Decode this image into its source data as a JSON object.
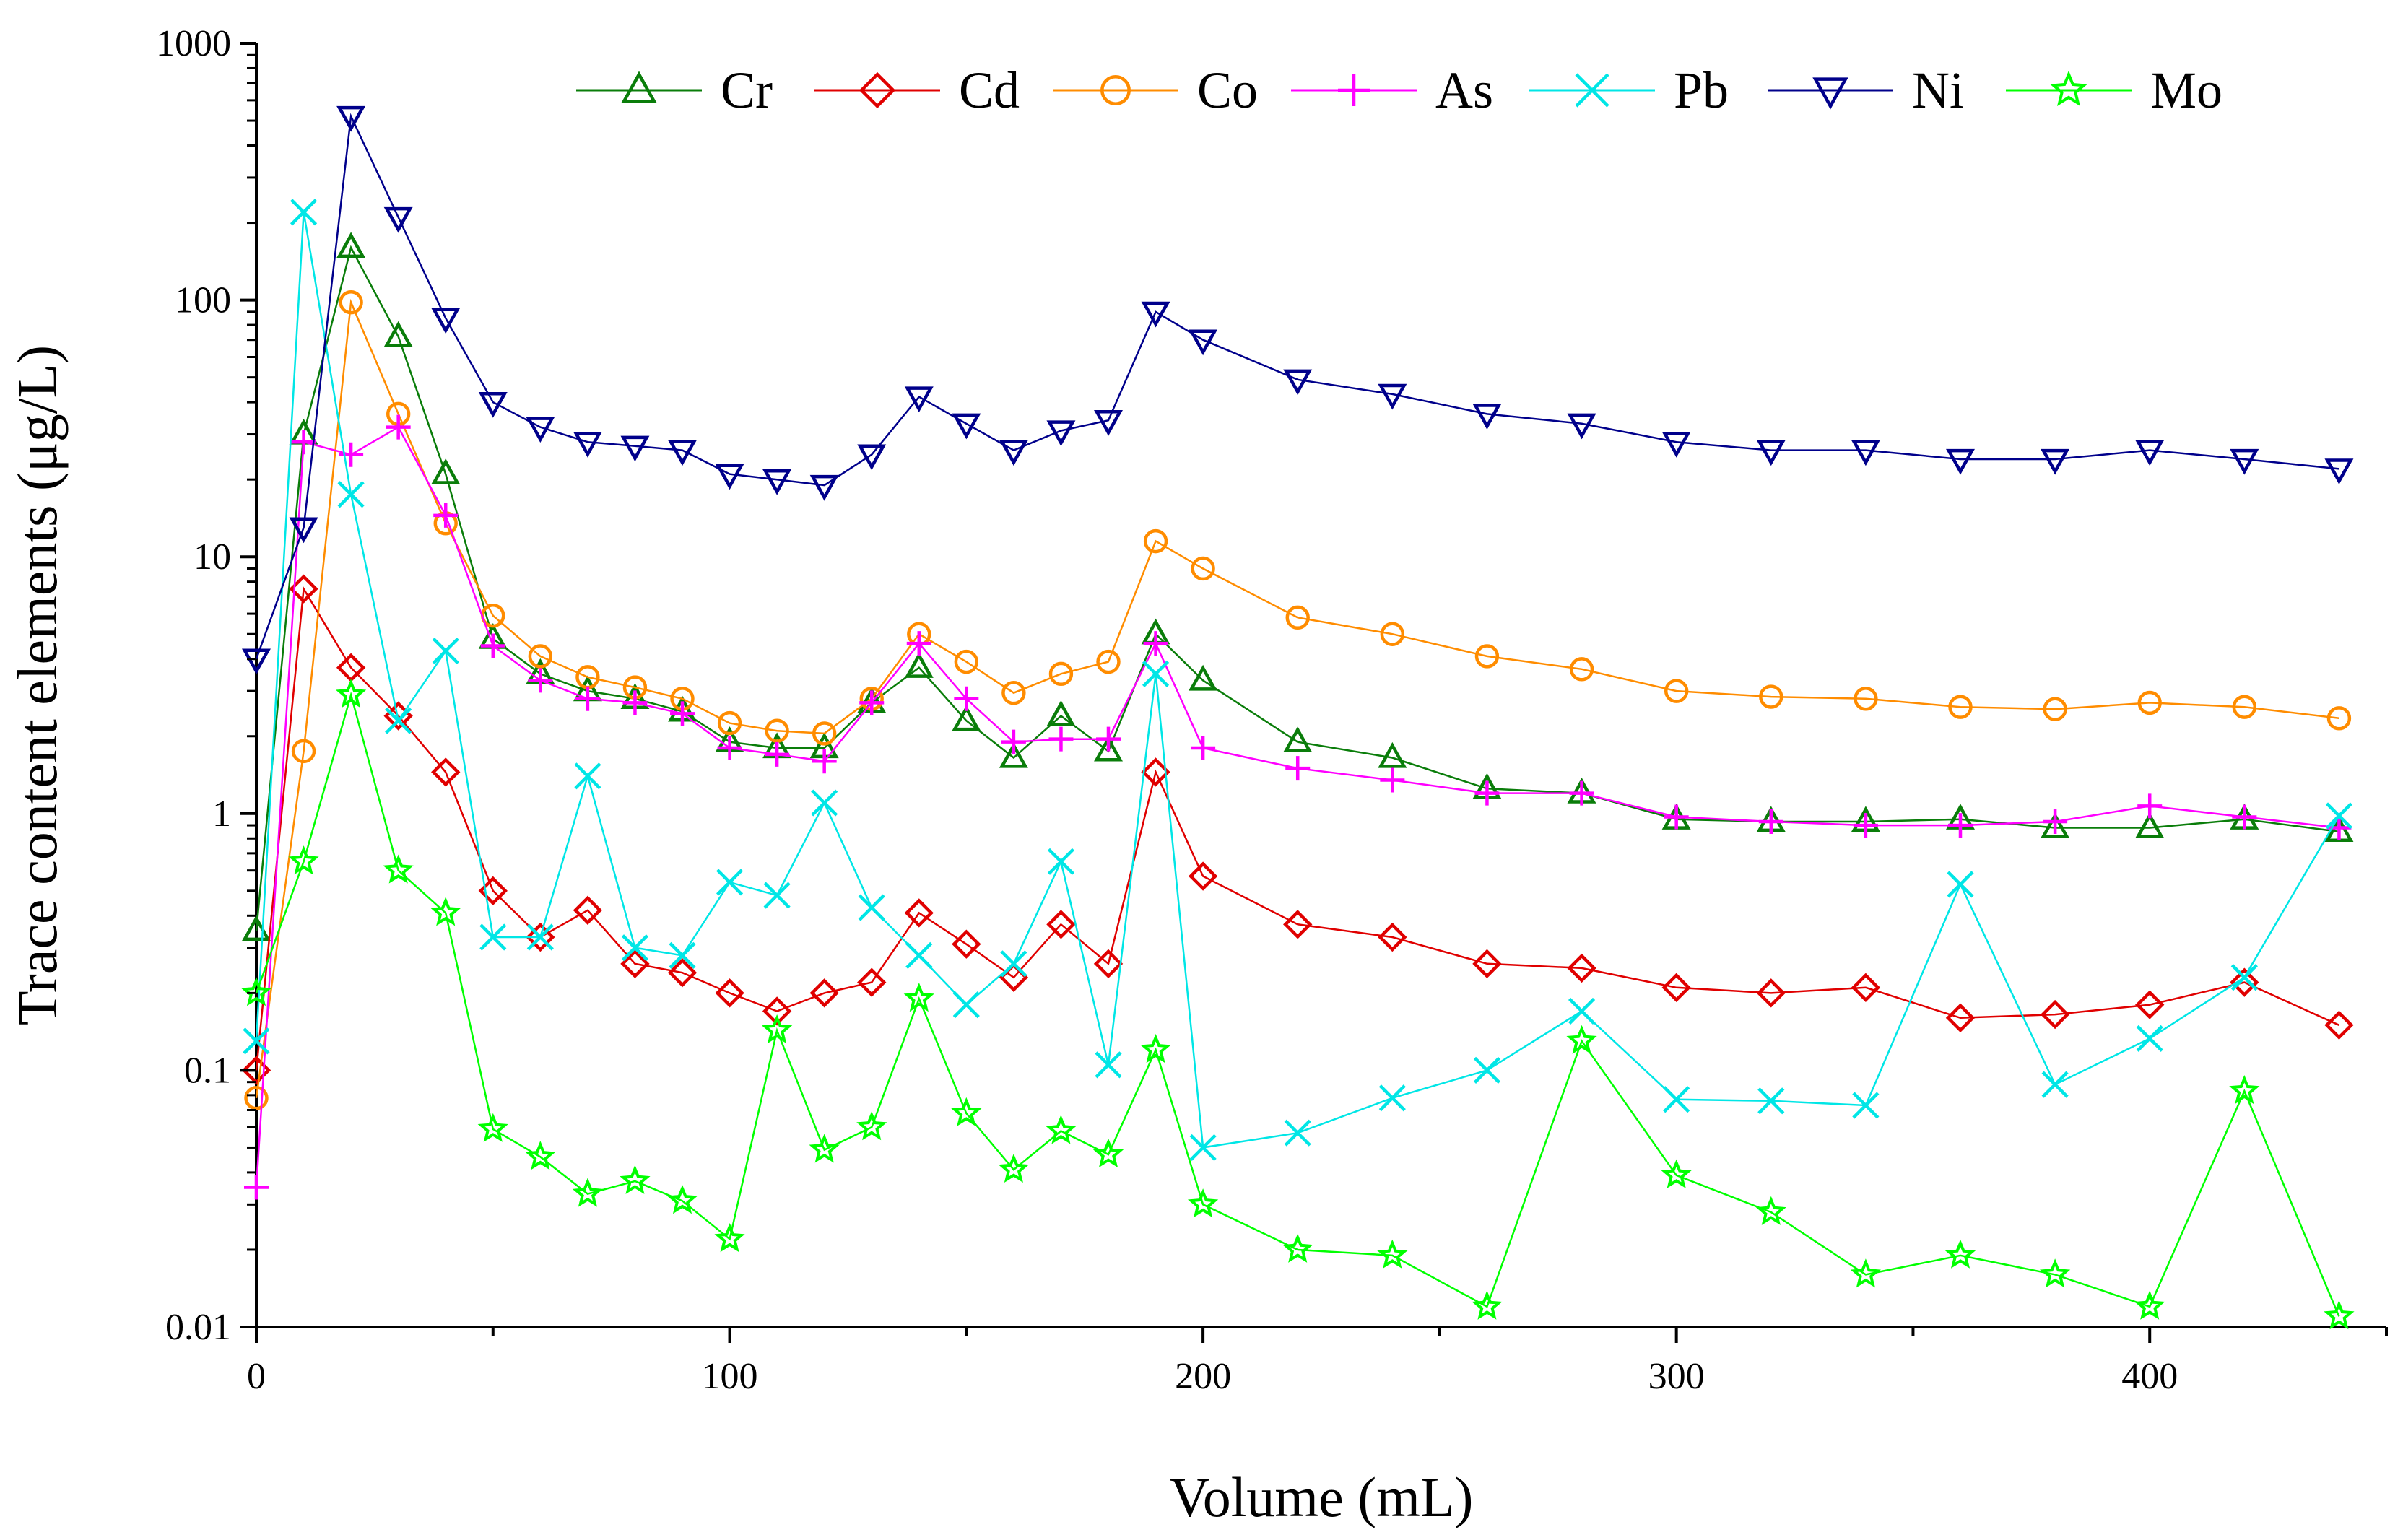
{
  "chart_data": {
    "type": "line",
    "xlabel": "Volume (mL)",
    "ylabel": "Trace content elements (μg/L)",
    "xlim": [
      0,
      450
    ],
    "ylim": [
      0.01,
      1000
    ],
    "yscale": "log",
    "x_ticks": [
      0,
      100,
      200,
      300,
      400
    ],
    "x_tick_labels": [
      "0",
      "100",
      "200",
      "300",
      "400"
    ],
    "y_ticks": [
      0.01,
      0.1,
      1,
      10,
      100,
      1000
    ],
    "y_tick_labels": [
      "0.01",
      "0.1",
      "1",
      "10",
      "100",
      "1000"
    ],
    "grid": false,
    "legend_position": "top",
    "x": [
      0,
      10,
      20,
      30,
      40,
      50,
      60,
      70,
      80,
      90,
      100,
      110,
      120,
      130,
      140,
      150,
      160,
      170,
      180,
      190,
      200,
      220,
      240,
      260,
      280,
      300,
      320,
      340,
      360,
      380,
      400,
      420,
      440
    ],
    "series": [
      {
        "name": "Cr",
        "color": "#0a7d0a",
        "marker": "triangle-up",
        "values": [
          0.35,
          30,
          160,
          72,
          21,
          4.8,
          3.5,
          3.0,
          2.8,
          2.5,
          1.9,
          1.8,
          1.8,
          2.7,
          3.7,
          2.3,
          1.65,
          2.4,
          1.75,
          5.0,
          3.3,
          1.9,
          1.65,
          1.25,
          1.2,
          0.95,
          0.93,
          0.93,
          0.95,
          0.88,
          0.88,
          0.95,
          0.85
        ]
      },
      {
        "name": "Cd",
        "color": "#e00000",
        "marker": "diamond",
        "values": [
          0.1,
          7.5,
          3.7,
          2.4,
          1.45,
          0.5,
          0.33,
          0.42,
          0.26,
          0.24,
          0.2,
          0.17,
          0.2,
          0.22,
          0.41,
          0.31,
          0.23,
          0.37,
          0.26,
          1.45,
          0.57,
          0.37,
          0.33,
          0.26,
          0.25,
          0.21,
          0.2,
          0.21,
          0.16,
          0.165,
          0.18,
          0.22,
          0.15
        ]
      },
      {
        "name": "Co",
        "color": "#ff8c00",
        "marker": "circle",
        "values": [
          0.078,
          1.75,
          98,
          36,
          13.5,
          5.9,
          4.1,
          3.4,
          3.1,
          2.8,
          2.25,
          2.1,
          2.05,
          2.8,
          5.0,
          3.9,
          2.95,
          3.5,
          3.9,
          11.5,
          9.0,
          5.8,
          5.0,
          4.1,
          3.65,
          3.0,
          2.85,
          2.8,
          2.6,
          2.55,
          2.7,
          2.6,
          2.35
        ]
      },
      {
        "name": "As",
        "color": "#ff00ff",
        "marker": "plus",
        "values": [
          0.035,
          28,
          25,
          32,
          14.5,
          4.5,
          3.3,
          2.8,
          2.7,
          2.45,
          1.8,
          1.7,
          1.6,
          2.7,
          4.6,
          2.8,
          1.9,
          1.95,
          1.95,
          4.6,
          1.8,
          1.5,
          1.35,
          1.2,
          1.2,
          0.97,
          0.93,
          0.9,
          0.9,
          0.93,
          1.07,
          0.97,
          0.88
        ]
      },
      {
        "name": "Pb",
        "color": "#00e6e6",
        "marker": "x",
        "values": [
          0.13,
          220,
          17.5,
          2.3,
          4.3,
          0.33,
          0.33,
          1.4,
          0.3,
          0.28,
          0.54,
          0.48,
          1.1,
          0.43,
          0.28,
          0.18,
          0.26,
          0.65,
          0.105,
          3.5,
          0.05,
          0.057,
          0.078,
          0.1,
          0.17,
          0.077,
          0.076,
          0.073,
          0.53,
          0.088,
          0.133,
          0.23,
          0.98
        ]
      },
      {
        "name": "Ni",
        "color": "#00008b",
        "marker": "triangle-down",
        "values": [
          4.0,
          13,
          520,
          210,
          85,
          40,
          32,
          28,
          27,
          26,
          21,
          20,
          19,
          25,
          42,
          33,
          26,
          31,
          34,
          90,
          70,
          49,
          43,
          36,
          33,
          28,
          26,
          26,
          24,
          24,
          26,
          24,
          22
        ]
      },
      {
        "name": "Mo",
        "color": "#00ff00",
        "marker": "star",
        "values": [
          0.2,
          0.65,
          2.9,
          0.6,
          0.41,
          0.059,
          0.046,
          0.033,
          0.037,
          0.031,
          0.022,
          0.143,
          0.049,
          0.06,
          0.19,
          0.068,
          0.041,
          0.058,
          0.047,
          0.12,
          0.03,
          0.02,
          0.019,
          0.012,
          0.13,
          0.039,
          0.028,
          0.016,
          0.019,
          0.016,
          0.012,
          0.083,
          0.011
        ]
      }
    ]
  }
}
